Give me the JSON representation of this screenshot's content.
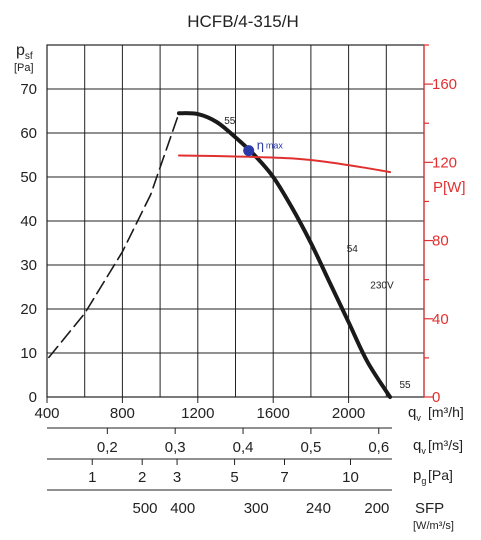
{
  "chart_data": {
    "type": "line",
    "title": "HCFB/4-315/H",
    "x_axis": {
      "label_main": "q",
      "label_sub": "v",
      "unit": "[m³/h]",
      "xlim": [
        400,
        2400
      ],
      "ticks": [
        400,
        800,
        1200,
        1600,
        2000
      ],
      "tick_labels": [
        "400",
        "800",
        "1200",
        "1600",
        "2000"
      ]
    },
    "y_axis": {
      "label_main": "p",
      "label_sub": "sf",
      "unit": "[Pa]",
      "ylim": [
        0,
        80
      ],
      "ticks": [
        0,
        10,
        20,
        30,
        40,
        50,
        60,
        70
      ],
      "tick_labels": [
        "0",
        "10",
        "20",
        "30",
        "40",
        "50",
        "60",
        "70"
      ]
    },
    "y2_axis": {
      "label": "P[W]",
      "color": "#e03030",
      "ylim": [
        0,
        180
      ],
      "ticks": [
        0,
        40,
        80,
        120,
        160
      ],
      "tick_labels": [
        "0",
        "40",
        "80",
        "120",
        "160"
      ]
    },
    "secondary_scales": [
      {
        "label_main": "q",
        "label_sub": "v",
        "unit": "[m³/s]",
        "marks": [
          {
            "x": 720,
            "label": "0,2"
          },
          {
            "x": 1080,
            "label": "0,3"
          },
          {
            "x": 1440,
            "label": "0,4"
          },
          {
            "x": 1800,
            "label": "0,5"
          },
          {
            "x": 2160,
            "label": "0,6"
          }
        ]
      },
      {
        "label_main": "p",
        "label_sub": "g",
        "unit": "[Pa]",
        "marks": [
          {
            "x": 640,
            "label": "1"
          },
          {
            "x": 905,
            "label": "2"
          },
          {
            "x": 1090,
            "label": "3"
          },
          {
            "x": 1395,
            "label": "5"
          },
          {
            "x": 1660,
            "label": "7"
          },
          {
            "x": 2010,
            "label": "10"
          }
        ]
      },
      {
        "label_main": "SFP",
        "unit": "[W/m³/s]",
        "marks": [
          {
            "x": 920,
            "label": "500"
          },
          {
            "x": 1120,
            "label": "400"
          },
          {
            "x": 1510,
            "label": "300"
          },
          {
            "x": 1840,
            "label": "240"
          },
          {
            "x": 2150,
            "label": "200"
          }
        ]
      }
    ],
    "series": [
      {
        "style": "dashed",
        "color": "#1a1a1a",
        "axis": "y",
        "points": [
          [
            410,
            9
          ],
          [
            600,
            19
          ],
          [
            800,
            33
          ],
          [
            950,
            46
          ],
          [
            1100,
            64.5
          ]
        ]
      },
      {
        "style": "solid-thick",
        "color": "#1a1a1a",
        "axis": "y",
        "points": [
          [
            1100,
            64.5
          ],
          [
            1200,
            64.3
          ],
          [
            1300,
            62.5
          ],
          [
            1400,
            59
          ],
          [
            1500,
            55
          ],
          [
            1600,
            50
          ],
          [
            1700,
            43
          ],
          [
            1800,
            35
          ],
          [
            1900,
            26
          ],
          [
            2000,
            17
          ],
          [
            2100,
            8
          ],
          [
            2220,
            0
          ]
        ]
      },
      {
        "style": "solid",
        "color": "#e03030",
        "axis": "y2",
        "points": [
          [
            1100,
            123.5
          ],
          [
            1400,
            123
          ],
          [
            1700,
            122
          ],
          [
            1900,
            120
          ],
          [
            2100,
            117
          ],
          [
            2220,
            115
          ]
        ]
      }
    ],
    "point_markers": [
      {
        "x": 1470,
        "y": 56,
        "label": "η",
        "sub_label": "max",
        "color": "#2a3aa8"
      }
    ],
    "annotations": [
      {
        "x": 1340,
        "y": 62,
        "text": "55"
      },
      {
        "x": 1990,
        "y": 33,
        "text": "54"
      },
      {
        "x": 2270,
        "y": 2,
        "text": "55"
      },
      {
        "x": 2115,
        "y": 55.6,
        "text": "230V",
        "axis": "y2",
        "color": "#e03030"
      }
    ]
  }
}
